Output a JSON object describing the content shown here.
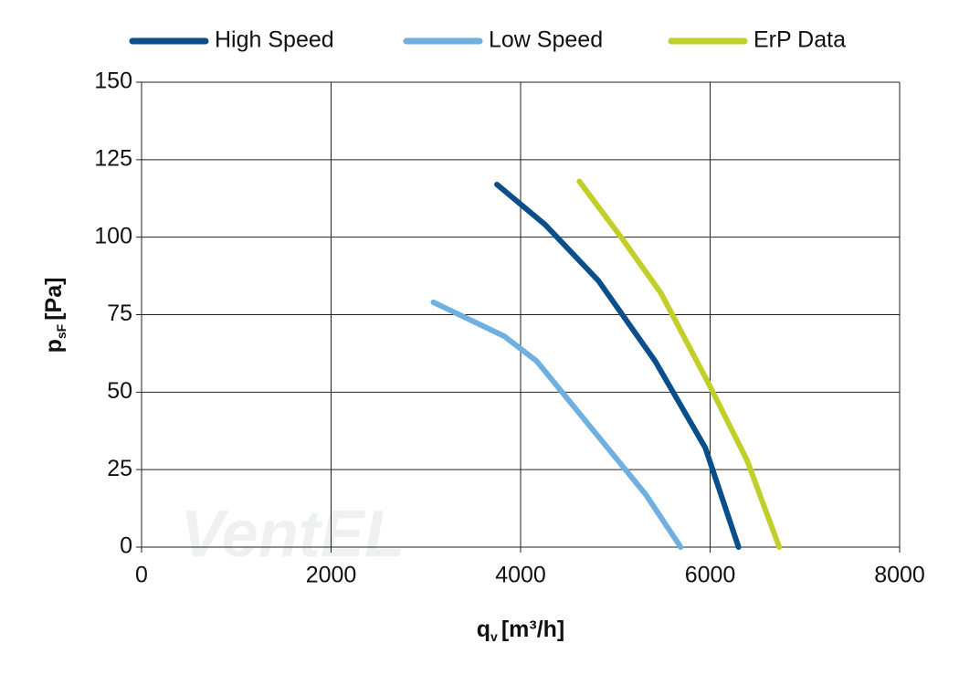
{
  "chart_data": {
    "type": "line",
    "x_label": {
      "main": "q",
      "sub": "v",
      "unit": "[m³/h]"
    },
    "y_label": {
      "main": "p",
      "sub": "sF",
      "unit": "[Pa]"
    },
    "watermark": "VentEL",
    "xlim": [
      0,
      8000
    ],
    "xticks": [
      0,
      2000,
      4000,
      6000,
      8000
    ],
    "ylim": [
      0,
      150
    ],
    "yticks": [
      0,
      25,
      50,
      75,
      100,
      125,
      150
    ],
    "grid": true,
    "legend": "top",
    "series": [
      {
        "name": "High Speed",
        "color": "#0b4f8a",
        "x": [
          3750,
          4260,
          4820,
          5420,
          5950,
          6300
        ],
        "values": [
          117,
          104,
          86,
          60,
          32,
          0
        ]
      },
      {
        "name": "Low Speed",
        "color": "#6fb0e0",
        "x": [
          3080,
          3830,
          4170,
          5320,
          5690
        ],
        "values": [
          79,
          68,
          60,
          17,
          0
        ]
      },
      {
        "name": "ErP Data",
        "color": "#c2cf2a",
        "x": [
          4620,
          5060,
          5480,
          5980,
          6390,
          6730
        ],
        "values": [
          118,
          100,
          82,
          53,
          28,
          0
        ]
      }
    ]
  }
}
